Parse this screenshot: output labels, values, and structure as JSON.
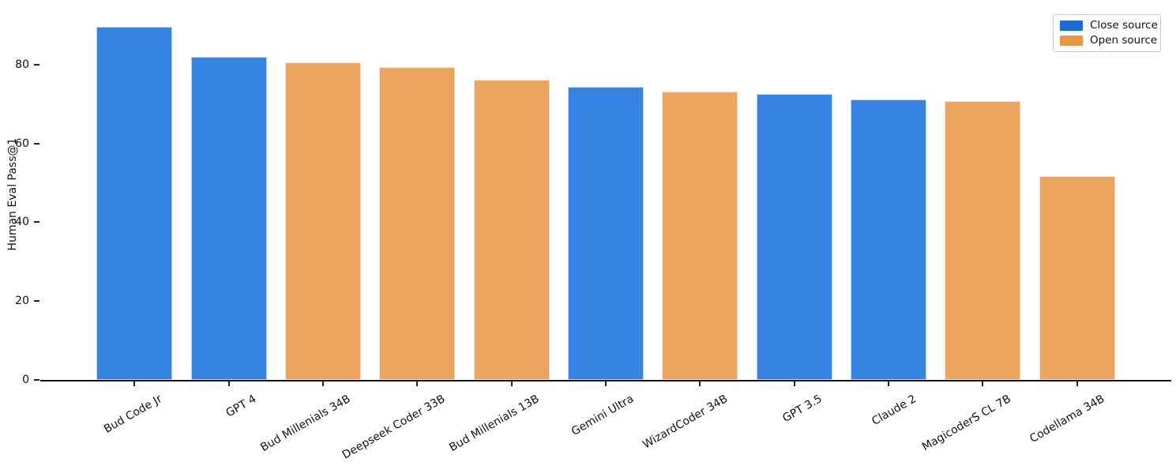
{
  "chart_data": {
    "type": "bar",
    "title": "",
    "xlabel": "",
    "ylabel": "Human Eval Pass@1",
    "categories": [
      "Bud Code Jr",
      "GPT 4",
      "Bud Millenials 34B",
      "Deepseek Coder 33B",
      "Bud Millenials 13B",
      "Gemini Ultra",
      "WizardCoder 34B",
      "GPT 3.5",
      "Claude 2",
      "MagicoderS CL 7B",
      "Codellama 34B"
    ],
    "values": [
      89.6,
      82.0,
      80.5,
      79.3,
      76.2,
      74.4,
      73.2,
      72.6,
      71.2,
      70.7,
      51.8
    ],
    "groups": [
      "close",
      "close",
      "open",
      "open",
      "open",
      "close",
      "open",
      "close",
      "close",
      "open",
      "open"
    ],
    "yticks": [
      0,
      20,
      40,
      60,
      80
    ],
    "ylim": [
      0,
      94
    ],
    "grid": false,
    "x_tick_rotation_deg": 30,
    "legend_position": "top-right",
    "legend": [
      {
        "id": "close",
        "label": "Close source",
        "swatch_color": "#1b6bd3"
      },
      {
        "id": "open",
        "label": "Open source",
        "swatch_color": "#e8963f"
      }
    ],
    "bar_colors": {
      "close": "#3584e4",
      "open": "#eba55e"
    },
    "axis_line_color": "#111111",
    "background_color": "#ffffff"
  }
}
